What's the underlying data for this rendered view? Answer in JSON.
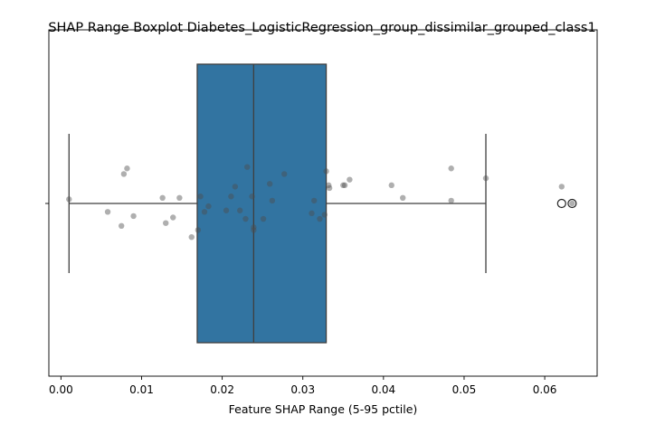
{
  "chart_data": {
    "type": "boxplot",
    "orientation": "horizontal",
    "title": "SHAP Range Boxplot Diabetes_LogisticRegression_group_dissimilar_grouped_class1",
    "xlabel": "Feature SHAP Range (5-95 pctile)",
    "ylabel": "",
    "xlim": [
      -0.0015,
      0.0665
    ],
    "x_ticks": [
      0.0,
      0.01,
      0.02,
      0.03,
      0.04,
      0.05,
      0.06
    ],
    "x_tick_labels": [
      "0.00",
      "0.01",
      "0.02",
      "0.03",
      "0.04",
      "0.05",
      "0.06"
    ],
    "y_tick_labels": [
      ""
    ],
    "grid": false,
    "colors": {
      "box_fill": "#3274a1",
      "box_edge": "#3f3f3f",
      "points": "#4d4d4d",
      "points_alpha": 0.45
    },
    "box": {
      "min_whisker": 0.001,
      "q1": 0.0169,
      "median": 0.0239,
      "q3": 0.0329,
      "max_whisker": 0.0527,
      "outliers": [
        0.0621,
        0.0634
      ]
    },
    "points": [
      {
        "x": 0.001,
        "jitter": 0.03
      },
      {
        "x": 0.0058,
        "jitter": -0.06
      },
      {
        "x": 0.0075,
        "jitter": -0.16
      },
      {
        "x": 0.0078,
        "jitter": 0.21
      },
      {
        "x": 0.0082,
        "jitter": 0.25
      },
      {
        "x": 0.009,
        "jitter": -0.09
      },
      {
        "x": 0.0126,
        "jitter": 0.04
      },
      {
        "x": 0.013,
        "jitter": -0.14
      },
      {
        "x": 0.0139,
        "jitter": -0.1
      },
      {
        "x": 0.0147,
        "jitter": 0.04
      },
      {
        "x": 0.0162,
        "jitter": -0.24
      },
      {
        "x": 0.017,
        "jitter": -0.19
      },
      {
        "x": 0.0173,
        "jitter": 0.05
      },
      {
        "x": 0.0178,
        "jitter": -0.06
      },
      {
        "x": 0.0183,
        "jitter": -0.02
      },
      {
        "x": 0.0205,
        "jitter": -0.05
      },
      {
        "x": 0.0211,
        "jitter": 0.05
      },
      {
        "x": 0.0216,
        "jitter": 0.12
      },
      {
        "x": 0.0222,
        "jitter": -0.05
      },
      {
        "x": 0.0229,
        "jitter": -0.11
      },
      {
        "x": 0.0231,
        "jitter": 0.26
      },
      {
        "x": 0.0237,
        "jitter": 0.05
      },
      {
        "x": 0.0239,
        "jitter": -0.17
      },
      {
        "x": 0.0239,
        "jitter": -0.19
      },
      {
        "x": 0.0251,
        "jitter": -0.11
      },
      {
        "x": 0.0259,
        "jitter": 0.14
      },
      {
        "x": 0.0262,
        "jitter": 0.02
      },
      {
        "x": 0.0277,
        "jitter": 0.21
      },
      {
        "x": 0.0311,
        "jitter": -0.07
      },
      {
        "x": 0.0314,
        "jitter": 0.02
      },
      {
        "x": 0.0321,
        "jitter": -0.11
      },
      {
        "x": 0.0327,
        "jitter": -0.08
      },
      {
        "x": 0.0329,
        "jitter": 0.23
      },
      {
        "x": 0.0332,
        "jitter": 0.13
      },
      {
        "x": 0.0333,
        "jitter": 0.11
      },
      {
        "x": 0.035,
        "jitter": 0.13
      },
      {
        "x": 0.0352,
        "jitter": 0.13
      },
      {
        "x": 0.0358,
        "jitter": 0.17
      },
      {
        "x": 0.041,
        "jitter": 0.13
      },
      {
        "x": 0.0424,
        "jitter": 0.04
      },
      {
        "x": 0.0484,
        "jitter": 0.25
      },
      {
        "x": 0.0484,
        "jitter": 0.02
      },
      {
        "x": 0.0527,
        "jitter": 0.18
      },
      {
        "x": 0.0621,
        "jitter": 0.12
      },
      {
        "x": 0.0634,
        "jitter": 0.0
      }
    ]
  }
}
